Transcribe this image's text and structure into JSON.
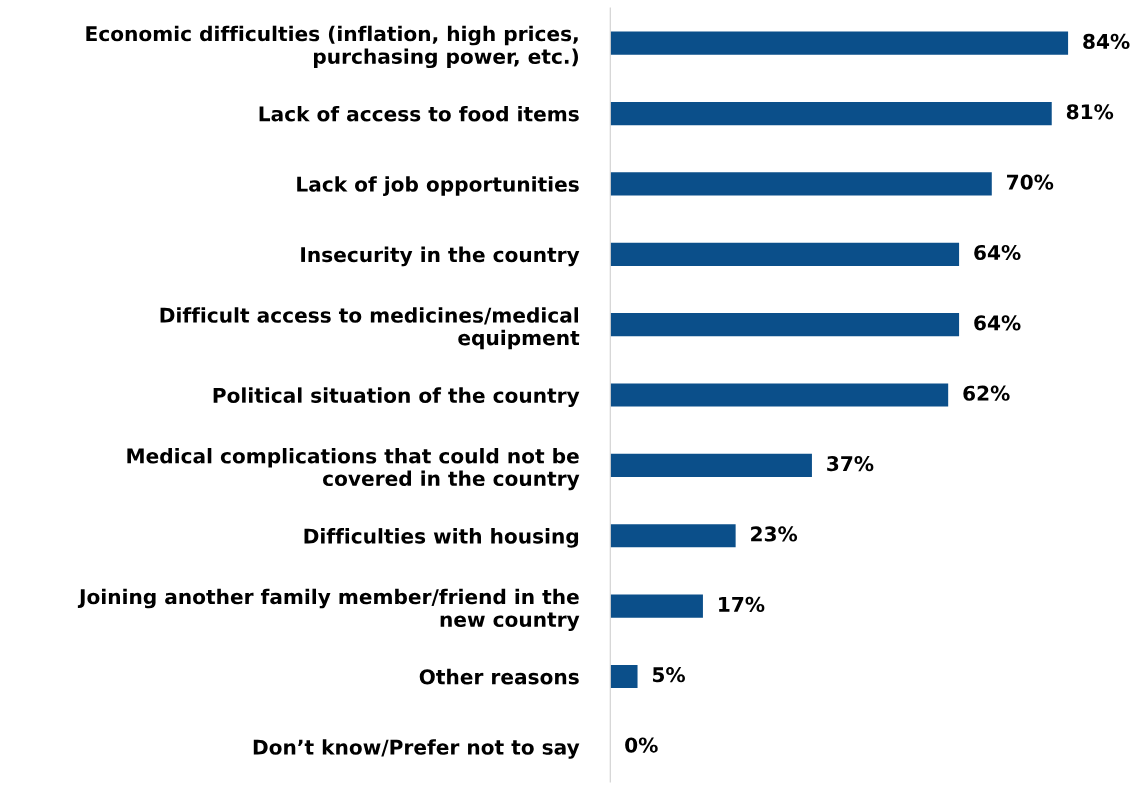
{
  "chart_data": {
    "type": "bar",
    "orientation": "horizontal",
    "categories": [
      "Economic difficulties (inflation, high prices,\npurchasing power, etc.)",
      "Lack of access to food items",
      "Lack of job opportunities",
      "Insecurity in the country",
      "Difficult access to medicines/medical\nequipment",
      "Political situation of the country",
      "Medical complications that could not be\ncovered in the country",
      "Difficulties with housing",
      "Joining another family member/friend in the\nnew country",
      "Other reasons",
      "Don’t know/Prefer not to say"
    ],
    "values": [
      84,
      81,
      70,
      64,
      64,
      62,
      37,
      23,
      17,
      5,
      0
    ],
    "value_labels": [
      "84%",
      "81%",
      "70%",
      "64%",
      "64%",
      "62%",
      "37%",
      "23%",
      "17%",
      "5%",
      "0%"
    ],
    "color": "#0b4f8a",
    "grid": false,
    "legend": false
  }
}
